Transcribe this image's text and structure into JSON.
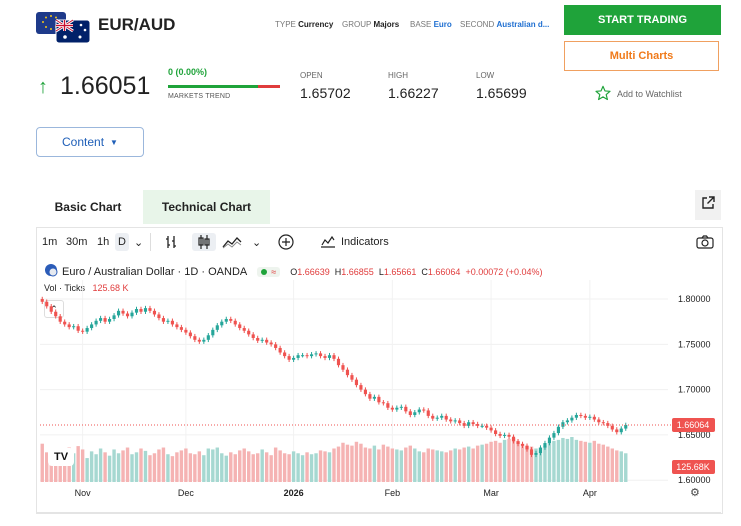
{
  "header": {
    "pair": "EUR/AUD",
    "meta": [
      {
        "key": "TYPE",
        "value": "Currency"
      },
      {
        "key": "GROUP",
        "value": "Majors"
      },
      {
        "key": "BASE",
        "value": "Euro"
      },
      {
        "key": "SECOND",
        "value": "Australian d..."
      }
    ],
    "start_trading": "START TRADING",
    "multi_charts": "Multi Charts"
  },
  "quote": {
    "price": "1.66051",
    "change": "0 (0.00%)",
    "trend_label": "MARKETS TREND",
    "trend_up_fraction": 0.8,
    "stats": [
      {
        "label": "OPEN",
        "value": "1.65702"
      },
      {
        "label": "HIGH",
        "value": "1.66227"
      },
      {
        "label": "LOW",
        "value": "1.65699"
      }
    ],
    "watchlist": "Add to Watchlist"
  },
  "content_button": "Content",
  "tabs": [
    {
      "label": "Basic Chart",
      "active": false
    },
    {
      "label": "Technical Chart",
      "active": true
    }
  ],
  "toolbar": {
    "intervals": [
      "1m",
      "30m",
      "1h",
      "D"
    ],
    "indicators": "Indicators"
  },
  "legend": {
    "symbol": "Euro / Australian Dollar · 1D · OANDA",
    "o_label": "O",
    "o": "1.66639",
    "h_label": "H",
    "h": "1.66855",
    "l_label": "L",
    "l": "1.65661",
    "c_label": "C",
    "c": "1.66064",
    "chg": "+0.00072 (+0.04%)",
    "vol_label": "Vol · Ticks",
    "vol_value": "125.68 K"
  },
  "chart_data": {
    "type": "candlestick",
    "price_ticks": [
      "1.80000",
      "1.75000",
      "1.70000",
      "1.65000",
      "1.60000"
    ],
    "price_tick_values": [
      1.8,
      1.75,
      1.7,
      1.65,
      1.6
    ],
    "ylim": [
      1.598,
      1.81
    ],
    "time_labels": [
      "Nov",
      "Dec",
      "2026",
      "Feb",
      "Mar",
      "Apr"
    ],
    "time_label_index": [
      9,
      32,
      56,
      78,
      100,
      122
    ],
    "last_price_tag": "1.66064",
    "last_volume_tag": "125.68K",
    "closes": [
      1.797,
      1.792,
      1.786,
      1.781,
      1.775,
      1.772,
      1.769,
      1.77,
      1.765,
      1.764,
      1.768,
      1.772,
      1.776,
      1.779,
      1.775,
      1.778,
      1.782,
      1.787,
      1.784,
      1.781,
      1.785,
      1.789,
      1.786,
      1.79,
      1.787,
      1.783,
      1.779,
      1.775,
      1.776,
      1.772,
      1.769,
      1.766,
      1.763,
      1.759,
      1.755,
      1.753,
      1.755,
      1.76,
      1.766,
      1.771,
      1.775,
      1.778,
      1.776,
      1.772,
      1.768,
      1.765,
      1.761,
      1.757,
      1.754,
      1.755,
      1.752,
      1.75,
      1.746,
      1.741,
      1.737,
      1.733,
      1.735,
      1.738,
      1.738,
      1.737,
      1.739,
      1.74,
      1.737,
      1.735,
      1.738,
      1.734,
      1.727,
      1.722,
      1.716,
      1.711,
      1.705,
      1.7,
      1.695,
      1.69,
      1.692,
      1.686,
      1.685,
      1.68,
      1.678,
      1.68,
      1.681,
      1.676,
      1.672,
      1.675,
      1.678,
      1.677,
      1.671,
      1.668,
      1.669,
      1.671,
      1.667,
      1.665,
      1.666,
      1.663,
      1.66,
      1.664,
      1.662,
      1.66,
      1.66,
      1.658,
      1.655,
      1.651,
      1.649,
      1.65,
      1.648,
      1.643,
      1.64,
      1.638,
      1.634,
      1.628,
      1.63,
      1.636,
      1.641,
      1.647,
      1.652,
      1.659,
      1.664,
      1.666,
      1.669,
      1.672,
      1.671,
      1.669,
      1.67,
      1.667,
      1.664,
      1.663,
      1.66,
      1.656,
      1.653,
      1.657,
      1.661
    ],
    "volumes": [
      80,
      62,
      58,
      66,
      70,
      55,
      72,
      60,
      75,
      68,
      50,
      64,
      58,
      70,
      62,
      55,
      68,
      60,
      66,
      72,
      58,
      62,
      70,
      65,
      56,
      60,
      68,
      72,
      58,
      54,
      62,
      66,
      70,
      60,
      58,
      64,
      56,
      70,
      68,
      72,
      60,
      55,
      62,
      58,
      66,
      70,
      64,
      58,
      60,
      68,
      62,
      56,
      72,
      66,
      60,
      58,
      64,
      60,
      56,
      62,
      58,
      60,
      66,
      64,
      62,
      70,
      74,
      82,
      78,
      76,
      84,
      80,
      72,
      70,
      76,
      68,
      78,
      74,
      70,
      68,
      66,
      72,
      76,
      70,
      64,
      62,
      70,
      68,
      66,
      64,
      62,
      66,
      70,
      68,
      72,
      74,
      70,
      76,
      78,
      80,
      84,
      86,
      82,
      88,
      90,
      92,
      86,
      80,
      76,
      74,
      70,
      72,
      76,
      82,
      86,
      88,
      92,
      90,
      94,
      88,
      86,
      84,
      82,
      86,
      80,
      78,
      74,
      70,
      66,
      64,
      60
    ]
  }
}
